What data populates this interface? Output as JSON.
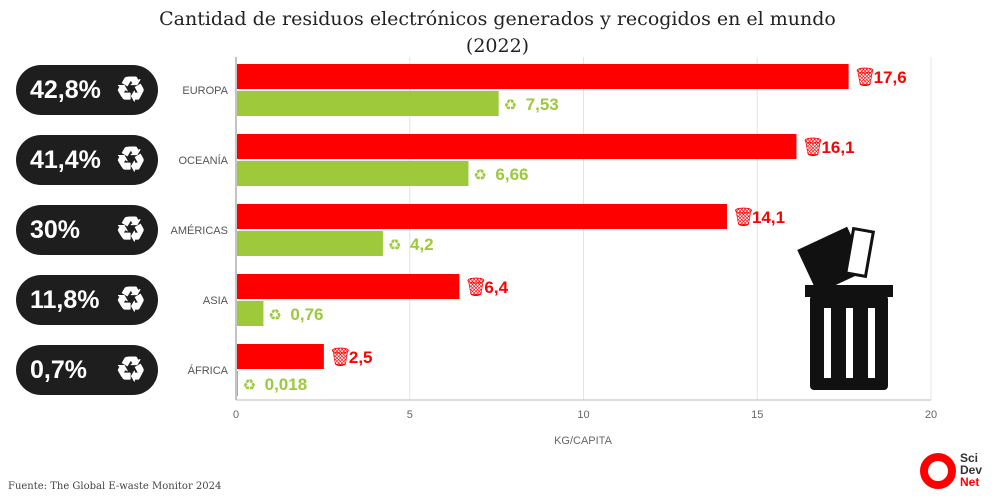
{
  "chart_data": {
    "type": "bar",
    "title": "Cantidad de residuos electrónicos generados y recogidos en el mundo",
    "subtitle": "(2022)",
    "categories": [
      "EUROPA",
      "OCEANÍA",
      "AMÉRICAS",
      "ASIA",
      "ÁFRICA"
    ],
    "series": [
      {
        "name": "Generados",
        "color": "#ff0000",
        "values": [
          17.6,
          16.1,
          14.1,
          6.4,
          2.5
        ],
        "labels": [
          "17,6",
          "16,1",
          "14,1",
          "6,4",
          "2,5"
        ]
      },
      {
        "name": "Recogidos",
        "color": "#9dc93b",
        "values": [
          7.53,
          6.66,
          4.2,
          0.76,
          0.018
        ],
        "labels": [
          "7,53",
          "6,66",
          "4,2",
          "0,76",
          "0,018"
        ]
      }
    ],
    "collection_rates": [
      "42,8%",
      "41,4%",
      "30%",
      "11,8%",
      "0,7%"
    ],
    "xlabel": "KG/CAPITA",
    "xlim": [
      0,
      20
    ],
    "xticks": [
      0,
      5,
      10,
      15,
      20
    ],
    "grid": true
  },
  "source": "Fuente: The Global E-waste Monitor 2024",
  "logo": [
    "Sci",
    "Dev",
    "Net"
  ]
}
